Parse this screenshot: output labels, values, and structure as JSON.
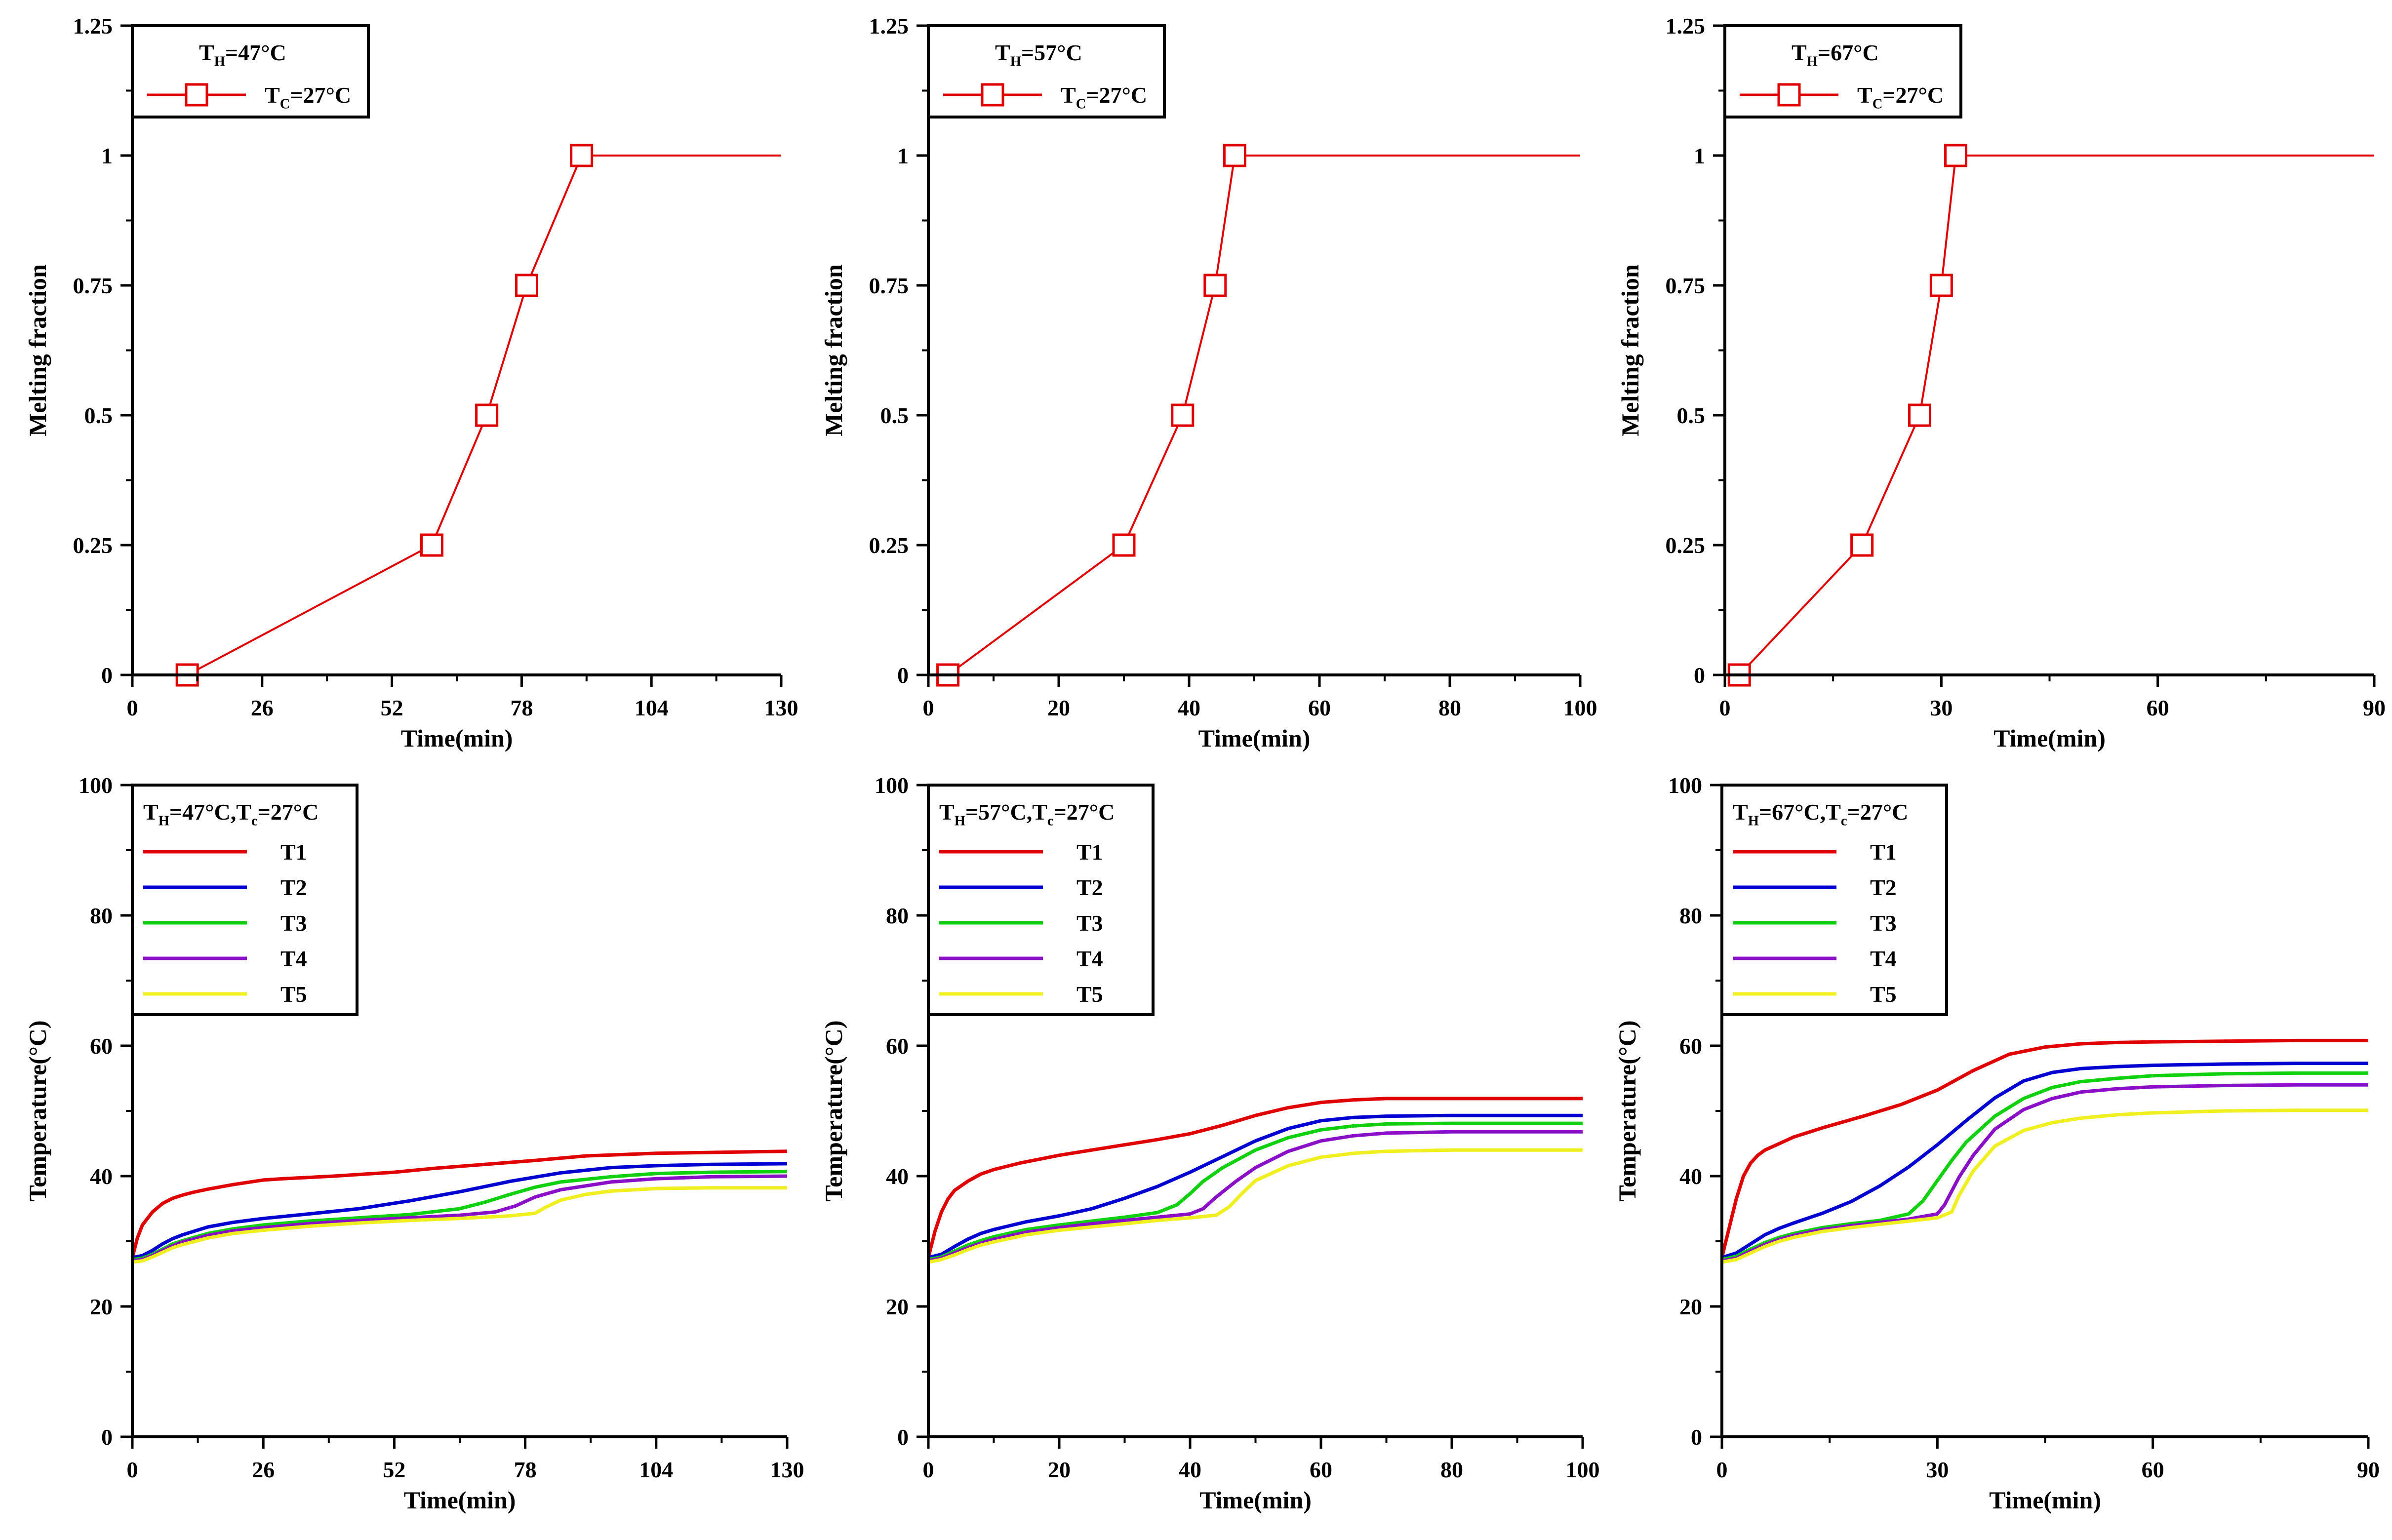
{
  "chart_data": [
    {
      "type": "line",
      "xlabel": "Time(min)",
      "ylabel": "Melting fraction",
      "xlim": [
        0,
        130
      ],
      "ylim": [
        0,
        1.25
      ],
      "x_ticks": [
        0,
        26,
        52,
        78,
        104,
        130
      ],
      "y_ticks": [
        0,
        0.25,
        0.5,
        0.75,
        1,
        1.25
      ],
      "y_tick_labels": [
        "0",
        "0.25",
        "0.5",
        "0.75",
        "1",
        "1.25"
      ],
      "legend": {
        "title": "T_H=47°C",
        "title_main": "T",
        "title_sub": "H",
        "title_rest": "=47°C",
        "location": "top-left"
      },
      "series": [
        {
          "name": "T_C=27°C",
          "label_main": "T",
          "label_sub": "C",
          "label_rest": "=27°C",
          "color": "#e00000",
          "marker": "square",
          "x": [
            11,
            60,
            71,
            79,
            90,
            130
          ],
          "y": [
            0,
            0.25,
            0.5,
            0.75,
            1,
            1
          ],
          "marker_count": 5
        }
      ]
    },
    {
      "type": "line",
      "xlabel": "Time(min)",
      "ylabel": "Melting fraction",
      "xlim": [
        0,
        100
      ],
      "ylim": [
        0,
        1.25
      ],
      "x_ticks": [
        0,
        20,
        40,
        60,
        80,
        100
      ],
      "y_ticks": [
        0,
        0.25,
        0.5,
        0.75,
        1,
        1.25
      ],
      "y_tick_labels": [
        "0",
        "0.25",
        "0.5",
        "0.75",
        "1",
        "1.25"
      ],
      "legend": {
        "title": "T_H=57°C",
        "title_main": "T",
        "title_sub": "H",
        "title_rest": "=57°C",
        "location": "top-left"
      },
      "series": [
        {
          "name": "T_C=27°C",
          "label_main": "T",
          "label_sub": "C",
          "label_rest": "=27°C",
          "color": "#e00000",
          "marker": "square",
          "x": [
            3,
            30,
            39,
            44,
            47,
            100
          ],
          "y": [
            0,
            0.25,
            0.5,
            0.75,
            1,
            1
          ],
          "marker_count": 5
        }
      ]
    },
    {
      "type": "line",
      "xlabel": "Time(min)",
      "ylabel": "Melting fraction",
      "xlim": [
        0,
        90
      ],
      "ylim": [
        0,
        1.25
      ],
      "x_ticks": [
        0,
        30,
        60,
        90
      ],
      "y_ticks": [
        0,
        0.25,
        0.5,
        0.75,
        1,
        1.25
      ],
      "y_tick_labels": [
        "0",
        "0.25",
        "0.5",
        "0.75",
        "1",
        "1.25"
      ],
      "legend": {
        "title": "T_H=67°C",
        "title_main": "T",
        "title_sub": "H",
        "title_rest": "=67°C",
        "location": "top-left"
      },
      "series": [
        {
          "name": "T_C=27°C",
          "label_main": "T",
          "label_sub": "C",
          "label_rest": "=27°C",
          "color": "#e00000",
          "marker": "square",
          "x": [
            2,
            19,
            27,
            30,
            32,
            90
          ],
          "y": [
            0,
            0.25,
            0.5,
            0.75,
            1,
            1
          ],
          "marker_count": 5
        }
      ]
    },
    {
      "type": "line",
      "xlabel": "Time(min)",
      "ylabel": "Temperature(°C)",
      "xlim": [
        0,
        130
      ],
      "ylim": [
        0,
        100
      ],
      "x_ticks": [
        0,
        26,
        52,
        78,
        104,
        130
      ],
      "y_ticks": [
        0,
        20,
        40,
        60,
        80,
        100
      ],
      "y_tick_labels": [
        "0",
        "20",
        "40",
        "60",
        "80",
        "100"
      ],
      "legend": {
        "title": "T_H=47°C,T_c=27°C",
        "title_main": "T",
        "title_sub": "H",
        "title_rest": "=47°C,T",
        "title_sub2": "c",
        "title_rest2": "=27°C",
        "location": "top-left"
      },
      "series": [
        {
          "name": "T1",
          "color": "#e00000",
          "x": [
            0,
            1,
            2,
            4,
            6,
            8,
            10,
            12,
            15,
            20,
            26,
            30,
            40,
            52,
            60,
            70,
            80,
            90,
            104,
            120,
            130
          ],
          "y": [
            27.5,
            30.5,
            32.5,
            34.5,
            35.8,
            36.6,
            37.1,
            37.5,
            38.0,
            38.7,
            39.4,
            39.6,
            40.0,
            40.6,
            41.2,
            41.8,
            42.4,
            43.1,
            43.5,
            43.7,
            43.8
          ]
        },
        {
          "name": "T2",
          "color": "#0000d0",
          "x": [
            0,
            2,
            4,
            6,
            8,
            10,
            15,
            20,
            26,
            35,
            45,
            55,
            65,
            75,
            85,
            95,
            104,
            115,
            130
          ],
          "y": [
            27.5,
            27.8,
            28.6,
            29.6,
            30.4,
            31.0,
            32.2,
            32.9,
            33.5,
            34.2,
            35.0,
            36.2,
            37.6,
            39.2,
            40.5,
            41.3,
            41.6,
            41.8,
            41.9
          ]
        },
        {
          "name": "T3",
          "color": "#10d010",
          "x": [
            0,
            2,
            4,
            6,
            8,
            10,
            15,
            20,
            26,
            35,
            45,
            55,
            65,
            70,
            75,
            80,
            85,
            95,
            104,
            115,
            130
          ],
          "y": [
            27.2,
            27.4,
            28.0,
            28.8,
            29.6,
            30.1,
            31.2,
            31.9,
            32.5,
            33.1,
            33.6,
            34.1,
            35.0,
            36.0,
            37.2,
            38.3,
            39.1,
            39.9,
            40.4,
            40.6,
            40.7
          ]
        },
        {
          "name": "T4",
          "color": "#8a10c8",
          "x": [
            0,
            2,
            4,
            6,
            8,
            10,
            15,
            20,
            26,
            35,
            45,
            55,
            65,
            72,
            76,
            80,
            85,
            95,
            104,
            115,
            130
          ],
          "y": [
            27.0,
            27.2,
            27.8,
            28.6,
            29.3,
            29.9,
            30.9,
            31.6,
            32.1,
            32.7,
            33.2,
            33.6,
            34.0,
            34.5,
            35.4,
            36.8,
            37.9,
            39.1,
            39.6,
            39.9,
            40.0
          ]
        },
        {
          "name": "T5",
          "color": "#f0f020",
          "x": [
            0,
            2,
            4,
            6,
            8,
            10,
            15,
            20,
            26,
            35,
            45,
            55,
            65,
            75,
            80,
            82,
            85,
            90,
            95,
            104,
            115,
            130
          ],
          "y": [
            26.8,
            27.0,
            27.6,
            28.3,
            29.0,
            29.5,
            30.5,
            31.2,
            31.7,
            32.3,
            32.8,
            33.2,
            33.5,
            33.9,
            34.3,
            35.2,
            36.3,
            37.2,
            37.7,
            38.1,
            38.2,
            38.2
          ]
        }
      ]
    },
    {
      "type": "line",
      "xlabel": "Time(min)",
      "ylabel": "Temperature(°C)",
      "xlim": [
        0,
        100
      ],
      "ylim": [
        0,
        100
      ],
      "x_ticks": [
        0,
        20,
        40,
        60,
        80,
        100
      ],
      "y_ticks": [
        0,
        20,
        40,
        60,
        80,
        100
      ],
      "y_tick_labels": [
        "0",
        "20",
        "40",
        "60",
        "80",
        "100"
      ],
      "legend": {
        "title": "T_H=57°C,T_c=27°C",
        "title_main": "T",
        "title_sub": "H",
        "title_rest": "=57°C,T",
        "title_sub2": "c",
        "title_rest2": "=27°C",
        "location": "top-left"
      },
      "series": [
        {
          "name": "T1",
          "color": "#e00000",
          "x": [
            0,
            1,
            2,
            3,
            4,
            6,
            8,
            10,
            14,
            20,
            25,
            30,
            35,
            40,
            45,
            50,
            55,
            60,
            65,
            70,
            80,
            90,
            100
          ],
          "y": [
            27.5,
            31.5,
            34.5,
            36.5,
            37.8,
            39.2,
            40.3,
            41.0,
            42.0,
            43.2,
            44.0,
            44.8,
            45.6,
            46.5,
            47.8,
            49.3,
            50.5,
            51.3,
            51.7,
            51.9,
            51.9,
            51.9,
            51.9
          ]
        },
        {
          "name": "T2",
          "color": "#0000d0",
          "x": [
            0,
            2,
            4,
            6,
            8,
            10,
            15,
            20,
            25,
            30,
            35,
            40,
            45,
            50,
            55,
            60,
            65,
            70,
            80,
            90,
            100
          ],
          "y": [
            27.5,
            28.0,
            29.2,
            30.3,
            31.2,
            31.8,
            33.0,
            33.9,
            35.0,
            36.6,
            38.4,
            40.6,
            43.0,
            45.4,
            47.3,
            48.5,
            49.0,
            49.2,
            49.3,
            49.3,
            49.3
          ]
        },
        {
          "name": "T3",
          "color": "#10d010",
          "x": [
            0,
            2,
            4,
            6,
            8,
            10,
            15,
            20,
            25,
            30,
            35,
            38,
            40,
            42,
            45,
            50,
            55,
            60,
            65,
            70,
            80,
            90,
            100
          ],
          "y": [
            27.2,
            27.6,
            28.5,
            29.4,
            30.1,
            30.7,
            31.8,
            32.5,
            33.1,
            33.7,
            34.4,
            35.6,
            37.3,
            39.2,
            41.3,
            44.0,
            45.9,
            47.1,
            47.7,
            48.0,
            48.1,
            48.1,
            48.1
          ]
        },
        {
          "name": "T4",
          "color": "#8a10c8",
          "x": [
            0,
            2,
            4,
            6,
            8,
            10,
            15,
            20,
            25,
            30,
            35,
            40,
            42,
            44,
            47,
            50,
            55,
            60,
            65,
            70,
            80,
            90,
            100
          ],
          "y": [
            27.0,
            27.4,
            28.2,
            29.0,
            29.7,
            30.3,
            31.4,
            32.1,
            32.7,
            33.2,
            33.7,
            34.2,
            35.0,
            36.8,
            39.2,
            41.3,
            43.8,
            45.4,
            46.2,
            46.6,
            46.8,
            46.8,
            46.8
          ]
        },
        {
          "name": "T5",
          "color": "#f0f020",
          "x": [
            0,
            2,
            4,
            6,
            8,
            10,
            15,
            20,
            25,
            30,
            35,
            40,
            44,
            46,
            48,
            50,
            55,
            60,
            65,
            70,
            80,
            90,
            100
          ],
          "y": [
            26.8,
            27.2,
            27.9,
            28.7,
            29.4,
            29.9,
            31.0,
            31.7,
            32.2,
            32.7,
            33.2,
            33.6,
            34.0,
            35.3,
            37.4,
            39.3,
            41.6,
            42.9,
            43.5,
            43.8,
            44.0,
            44.0,
            44.0
          ]
        }
      ]
    },
    {
      "type": "line",
      "xlabel": "Time(min)",
      "ylabel": "Temperature(°C)",
      "xlim": [
        0,
        90
      ],
      "ylim": [
        0,
        100
      ],
      "x_ticks": [
        0,
        30,
        60,
        90
      ],
      "y_ticks": [
        0,
        20,
        40,
        60,
        80,
        100
      ],
      "y_tick_labels": [
        "0",
        "20",
        "40",
        "60",
        "80",
        "100"
      ],
      "legend": {
        "title": "T_H=67°C,T_c=27°C",
        "title_main": "T",
        "title_sub": "H",
        "title_rest": "=67°C,T",
        "title_sub2": "c",
        "title_rest2": "=27°C",
        "location": "top-left"
      },
      "series": [
        {
          "name": "T1",
          "color": "#e00000",
          "x": [
            0,
            1,
            2,
            3,
            4,
            5,
            6,
            8,
            10,
            14,
            20,
            25,
            30,
            35,
            40,
            45,
            50,
            55,
            60,
            70,
            80,
            90
          ],
          "y": [
            27.5,
            32.0,
            36.5,
            40.0,
            42.0,
            43.2,
            44.0,
            45.0,
            46.0,
            47.4,
            49.3,
            51.0,
            53.2,
            56.2,
            58.7,
            59.8,
            60.3,
            60.5,
            60.6,
            60.7,
            60.8,
            60.8
          ]
        },
        {
          "name": "T2",
          "color": "#0000d0",
          "x": [
            0,
            2,
            4,
            6,
            8,
            10,
            14,
            18,
            22,
            26,
            30,
            34,
            38,
            42,
            46,
            50,
            55,
            60,
            70,
            80,
            90
          ],
          "y": [
            27.5,
            28.2,
            29.6,
            31.0,
            32.0,
            32.8,
            34.3,
            36.1,
            38.5,
            41.4,
            44.8,
            48.5,
            52.0,
            54.6,
            55.9,
            56.5,
            56.8,
            57.0,
            57.2,
            57.3,
            57.3
          ]
        },
        {
          "name": "T3",
          "color": "#10d010",
          "x": [
            0,
            2,
            4,
            6,
            8,
            10,
            14,
            18,
            22,
            26,
            28,
            30,
            32,
            34,
            38,
            42,
            46,
            50,
            55,
            60,
            70,
            80,
            90
          ],
          "y": [
            27.2,
            27.7,
            28.8,
            29.8,
            30.6,
            31.2,
            32.1,
            32.7,
            33.2,
            34.2,
            36.2,
            39.3,
            42.4,
            45.2,
            49.2,
            51.9,
            53.6,
            54.5,
            55.0,
            55.4,
            55.7,
            55.8,
            55.8
          ]
        },
        {
          "name": "T4",
          "color": "#8a10c8",
          "x": [
            0,
            2,
            4,
            6,
            8,
            10,
            14,
            18,
            22,
            26,
            30,
            31,
            33,
            35,
            38,
            42,
            46,
            50,
            55,
            60,
            70,
            80,
            90
          ],
          "y": [
            27.0,
            27.4,
            28.5,
            29.5,
            30.3,
            30.9,
            31.8,
            32.4,
            32.9,
            33.4,
            34.2,
            35.6,
            39.8,
            43.2,
            47.2,
            50.2,
            51.9,
            52.9,
            53.4,
            53.7,
            53.9,
            54.0,
            54.0
          ]
        },
        {
          "name": "T5",
          "color": "#f0f020",
          "x": [
            0,
            2,
            4,
            6,
            8,
            10,
            14,
            18,
            22,
            26,
            30,
            32,
            33,
            35,
            38,
            42,
            46,
            50,
            55,
            60,
            70,
            80,
            90
          ],
          "y": [
            26.8,
            27.2,
            28.2,
            29.2,
            30.0,
            30.6,
            31.5,
            32.1,
            32.6,
            33.1,
            33.6,
            34.5,
            37.0,
            40.8,
            44.6,
            47.0,
            48.2,
            48.9,
            49.4,
            49.7,
            50.0,
            50.1,
            50.1
          ]
        }
      ]
    }
  ]
}
